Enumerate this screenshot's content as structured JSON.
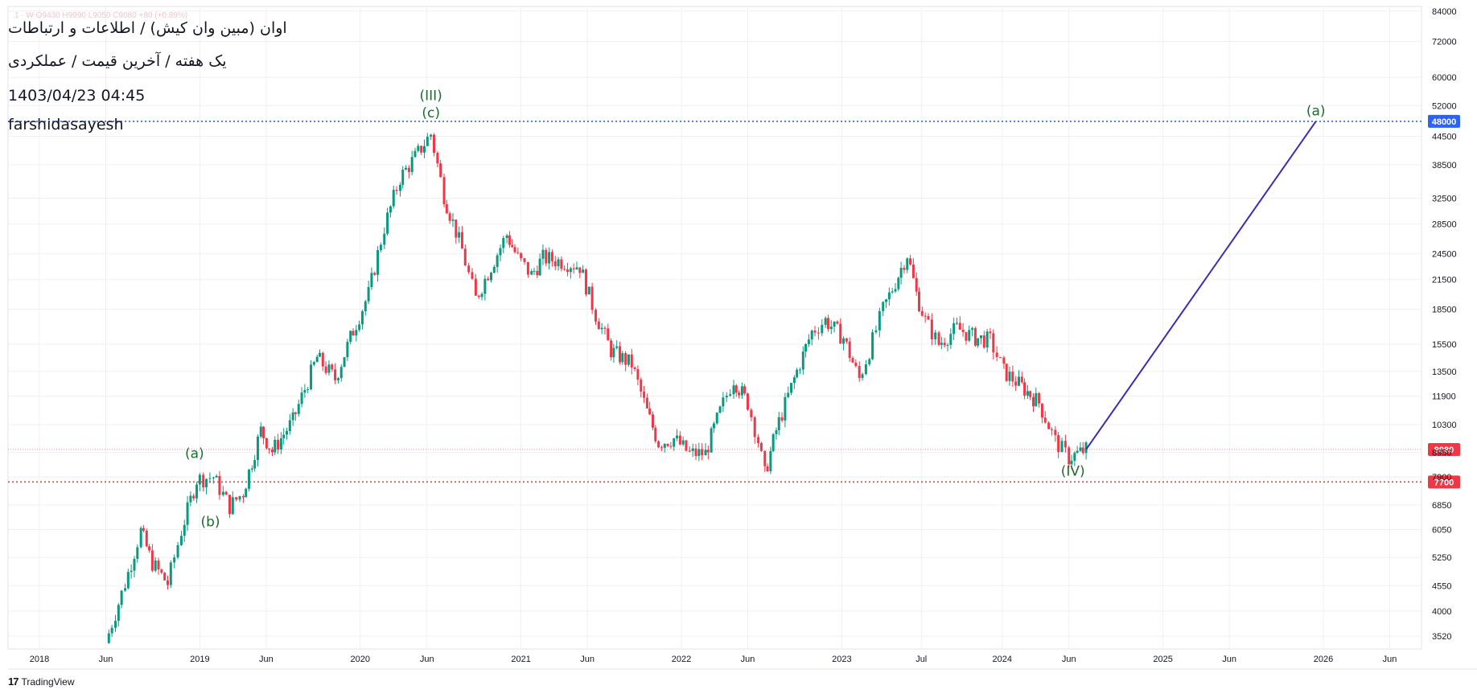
{
  "header": {
    "ohlc_line": "1  ·  W  O9430  H9990  L9050  C9080  +80 (+0.89%)",
    "line1": "اوان (مبین وان کیش) / اطلاعات و ارتباطات",
    "line2": "یک هفته / آخرین قیمت / عملکردی",
    "line3": "1403/04/23 04:45",
    "line4": "farshidasayesh"
  },
  "branding": {
    "logo_icon": "tradingview-logo-icon",
    "text": "TradingView"
  },
  "colors": {
    "up": "#089981",
    "down": "#f23645",
    "label_green": "#1e6b2e",
    "projection": "#3b2cb0",
    "level_blue": "#2962ff",
    "level_red": "#f23645",
    "grid": "#eef0f3",
    "axis_text": "#131722"
  },
  "chart_data": {
    "type": "candlestick",
    "scale": "log",
    "ylim": [
      3300,
      86000
    ],
    "y_ticks": [
      84000,
      72000,
      60000,
      52000,
      44500,
      38500,
      32500,
      28500,
      24500,
      21500,
      18500,
      15500,
      13500,
      11900,
      10300,
      8950,
      7900,
      6850,
      6050,
      5250,
      4550,
      4000,
      3520
    ],
    "x_ticks": [
      {
        "label": "2018",
        "date": "2018-01-01"
      },
      {
        "label": "Jun",
        "date": "2018-06-01"
      },
      {
        "label": "2019",
        "date": "2019-01-01"
      },
      {
        "label": "Jun",
        "date": "2019-06-01"
      },
      {
        "label": "2020",
        "date": "2020-01-01"
      },
      {
        "label": "Jun",
        "date": "2020-06-01"
      },
      {
        "label": "2021",
        "date": "2021-01-01"
      },
      {
        "label": "Jun",
        "date": "2021-06-01"
      },
      {
        "label": "2022",
        "date": "2022-01-01"
      },
      {
        "label": "Jun",
        "date": "2022-06-01"
      },
      {
        "label": "2023",
        "date": "2023-01-01"
      },
      {
        "label": "Jul",
        "date": "2023-07-01"
      },
      {
        "label": "2024",
        "date": "2024-01-01"
      },
      {
        "label": "Jun",
        "date": "2024-06-01"
      },
      {
        "label": "2025",
        "date": "2025-01-01"
      },
      {
        "label": "Jun",
        "date": "2025-06-01"
      },
      {
        "label": "2026",
        "date": "2026-01-01"
      },
      {
        "label": "Jun",
        "date": "2026-06-01"
      }
    ],
    "price_path": [
      {
        "date": "2018-06-01",
        "price": 3400
      },
      {
        "date": "2018-07-15",
        "price": 4600
      },
      {
        "date": "2018-08-20",
        "price": 6000
      },
      {
        "date": "2018-09-15",
        "price": 5100
      },
      {
        "date": "2018-10-20",
        "price": 4600
      },
      {
        "date": "2018-11-20",
        "price": 6000
      },
      {
        "date": "2018-12-25",
        "price": 7800
      },
      {
        "date": "2019-02-01",
        "price": 7900
      },
      {
        "date": "2019-03-10",
        "price": 6800
      },
      {
        "date": "2019-04-10",
        "price": 7300
      },
      {
        "date": "2019-05-20",
        "price": 10000
      },
      {
        "date": "2019-06-15",
        "price": 9000
      },
      {
        "date": "2019-08-01",
        "price": 10500
      },
      {
        "date": "2019-09-25",
        "price": 14500
      },
      {
        "date": "2019-11-05",
        "price": 13000
      },
      {
        "date": "2019-12-10",
        "price": 16000
      },
      {
        "date": "2020-01-20",
        "price": 20000
      },
      {
        "date": "2020-02-25",
        "price": 28000
      },
      {
        "date": "2020-04-01",
        "price": 36000
      },
      {
        "date": "2020-05-05",
        "price": 40000
      },
      {
        "date": "2020-06-10",
        "price": 45000
      },
      {
        "date": "2020-07-10",
        "price": 33000
      },
      {
        "date": "2020-08-20",
        "price": 25000
      },
      {
        "date": "2020-09-20",
        "price": 19500
      },
      {
        "date": "2020-10-25",
        "price": 23000
      },
      {
        "date": "2020-11-30",
        "price": 27000
      },
      {
        "date": "2020-12-25",
        "price": 24000
      },
      {
        "date": "2021-01-25",
        "price": 22000
      },
      {
        "date": "2021-02-20",
        "price": 24000
      },
      {
        "date": "2021-04-10",
        "price": 23500
      },
      {
        "date": "2021-05-15",
        "price": 23000
      },
      {
        "date": "2021-06-20",
        "price": 18000
      },
      {
        "date": "2021-07-25",
        "price": 15000
      },
      {
        "date": "2021-09-10",
        "price": 14000
      },
      {
        "date": "2021-10-15",
        "price": 11000
      },
      {
        "date": "2021-11-10",
        "price": 9400
      },
      {
        "date": "2021-12-15",
        "price": 9600
      },
      {
        "date": "2022-01-20",
        "price": 8900
      },
      {
        "date": "2022-02-25",
        "price": 8900
      },
      {
        "date": "2022-03-30",
        "price": 11000
      },
      {
        "date": "2022-04-30",
        "price": 13000
      },
      {
        "date": "2022-06-01",
        "price": 11500
      },
      {
        "date": "2022-06-25",
        "price": 9500
      },
      {
        "date": "2022-07-10",
        "price": 8000
      },
      {
        "date": "2022-08-05",
        "price": 10000
      },
      {
        "date": "2022-09-15",
        "price": 13000
      },
      {
        "date": "2022-10-25",
        "price": 16500
      },
      {
        "date": "2022-11-25",
        "price": 17500
      },
      {
        "date": "2023-01-05",
        "price": 16000
      },
      {
        "date": "2023-02-10",
        "price": 13000
      },
      {
        "date": "2023-03-05",
        "price": 15000
      },
      {
        "date": "2023-04-05",
        "price": 18500
      },
      {
        "date": "2023-05-10",
        "price": 22000
      },
      {
        "date": "2023-05-30",
        "price": 24500
      },
      {
        "date": "2023-06-20",
        "price": 20000
      },
      {
        "date": "2023-07-10",
        "price": 17500
      },
      {
        "date": "2023-08-10",
        "price": 15500
      },
      {
        "date": "2023-09-20",
        "price": 16800
      },
      {
        "date": "2023-11-01",
        "price": 16000
      },
      {
        "date": "2023-12-05",
        "price": 15800
      },
      {
        "date": "2024-01-05",
        "price": 13500
      },
      {
        "date": "2024-02-15",
        "price": 12500
      },
      {
        "date": "2024-03-25",
        "price": 11500
      },
      {
        "date": "2024-05-01",
        "price": 9500
      },
      {
        "date": "2024-06-01",
        "price": 8700
      },
      {
        "date": "2024-07-10",
        "price": 9080
      }
    ],
    "levels": [
      {
        "name": "level-48000",
        "price": 48000,
        "label": "48000",
        "color": "#2962ff",
        "style": "dotted"
      },
      {
        "name": "last-price",
        "price": 9080,
        "label": "9080",
        "color": "#f23645",
        "style": "faint"
      },
      {
        "name": "level-7700",
        "price": 7700,
        "label": "7700",
        "color": "#f23645",
        "style": "dotted"
      }
    ],
    "projection": {
      "from": {
        "date": "2024-07-10",
        "price": 9080
      },
      "to": {
        "date": "2025-12-15",
        "price": 48000
      }
    },
    "wave_labels": [
      {
        "text": "(a)",
        "date": "2018-12-20",
        "price": 8700
      },
      {
        "text": "(b)",
        "date": "2019-01-25",
        "price": 6150
      },
      {
        "text": "(III)",
        "date": "2020-06-10",
        "price": 53500
      },
      {
        "text": "(c)",
        "date": "2020-06-10",
        "price": 49000
      },
      {
        "text": "(IV)",
        "date": "2024-06-10",
        "price": 7950
      },
      {
        "text": "(a)",
        "date": "2025-12-15",
        "price": 49500
      }
    ]
  }
}
